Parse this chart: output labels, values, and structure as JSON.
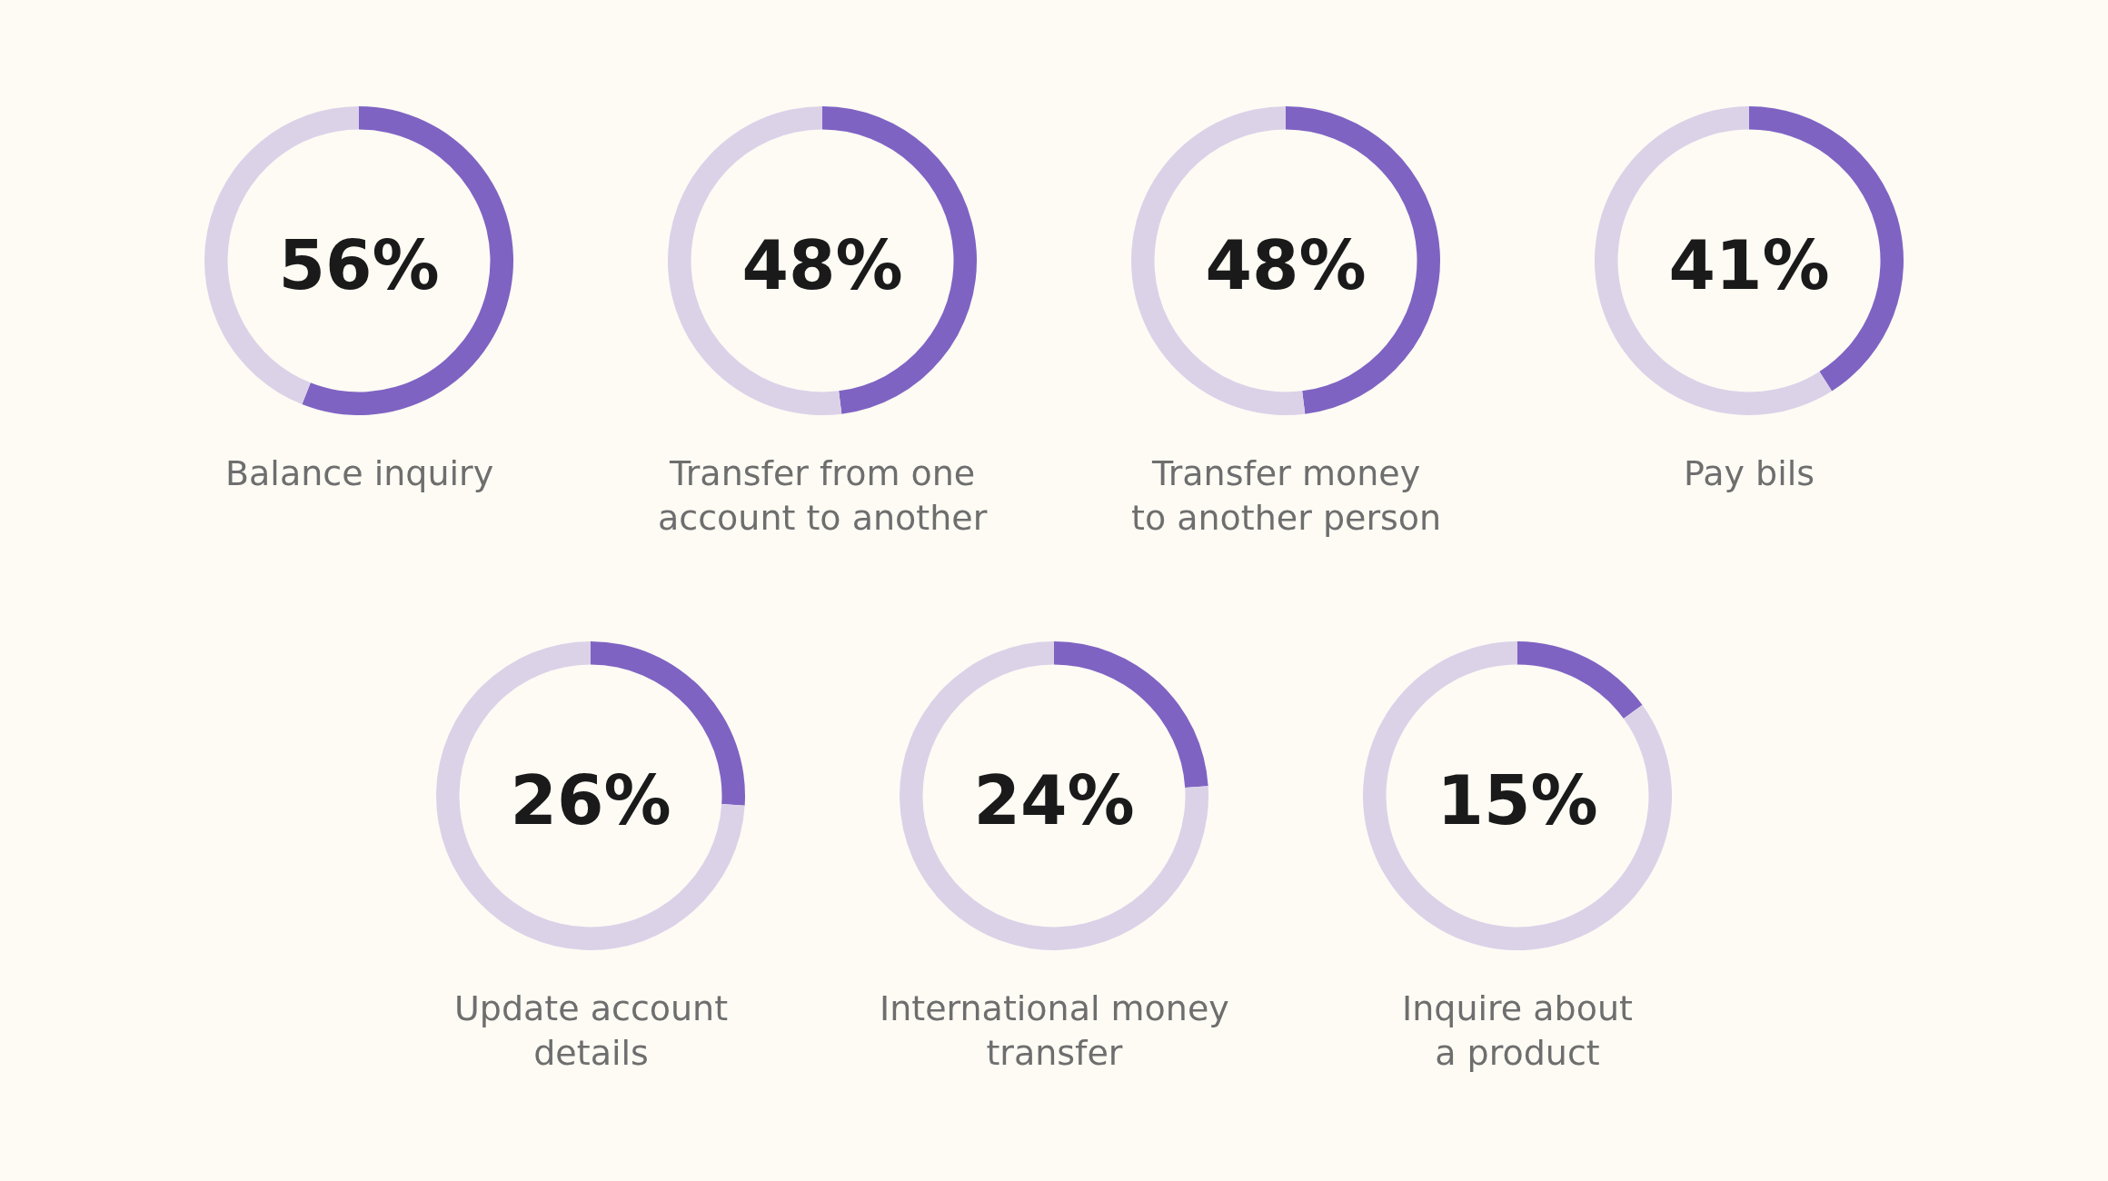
{
  "chart_data": [
    {
      "type": "donut",
      "title": "Balance inquiry",
      "categories": [
        null,
        null
      ],
      "values": [
        56,
        44
      ],
      "colors": [
        "#7f63c3",
        "#dbd2e8"
      ],
      "annotations": [
        "56%"
      ]
    },
    {
      "type": "donut",
      "title": "Transfer from one\naccount to another",
      "categories": [
        null,
        null
      ],
      "values": [
        48,
        52
      ],
      "colors": [
        "#7f63c3",
        "#dbd2e8"
      ],
      "annotations": [
        "48%"
      ]
    },
    {
      "type": "donut",
      "title": "Transfer money\nto another person",
      "categories": [
        null,
        null
      ],
      "values": [
        48,
        52
      ],
      "colors": [
        "#7f63c3",
        "#dbd2e8"
      ],
      "annotations": [
        "48%"
      ]
    },
    {
      "type": "donut",
      "title": "Pay bils",
      "categories": [
        null,
        null
      ],
      "values": [
        41,
        59
      ],
      "colors": [
        "#7f63c3",
        "#dbd2e8"
      ],
      "annotations": [
        "41%"
      ]
    },
    {
      "type": "donut",
      "title": "Update account\ndetails",
      "categories": [
        null,
        null
      ],
      "values": [
        26,
        74
      ],
      "colors": [
        "#7f63c3",
        "#dbd2e8"
      ],
      "annotations": [
        "26%"
      ]
    },
    {
      "type": "donut",
      "title": "International money\ntransfer",
      "categories": [
        null,
        null
      ],
      "values": [
        24,
        76
      ],
      "colors": [
        "#7f63c3",
        "#dbd2e8"
      ],
      "annotations": [
        "24%"
      ]
    },
    {
      "type": "donut",
      "title": "Inquire about\na product",
      "categories": [
        null,
        null
      ],
      "values": [
        15,
        85
      ],
      "colors": [
        "#7f63c3",
        "#dbd2e8"
      ],
      "annotations": [
        "15%"
      ]
    }
  ]
}
